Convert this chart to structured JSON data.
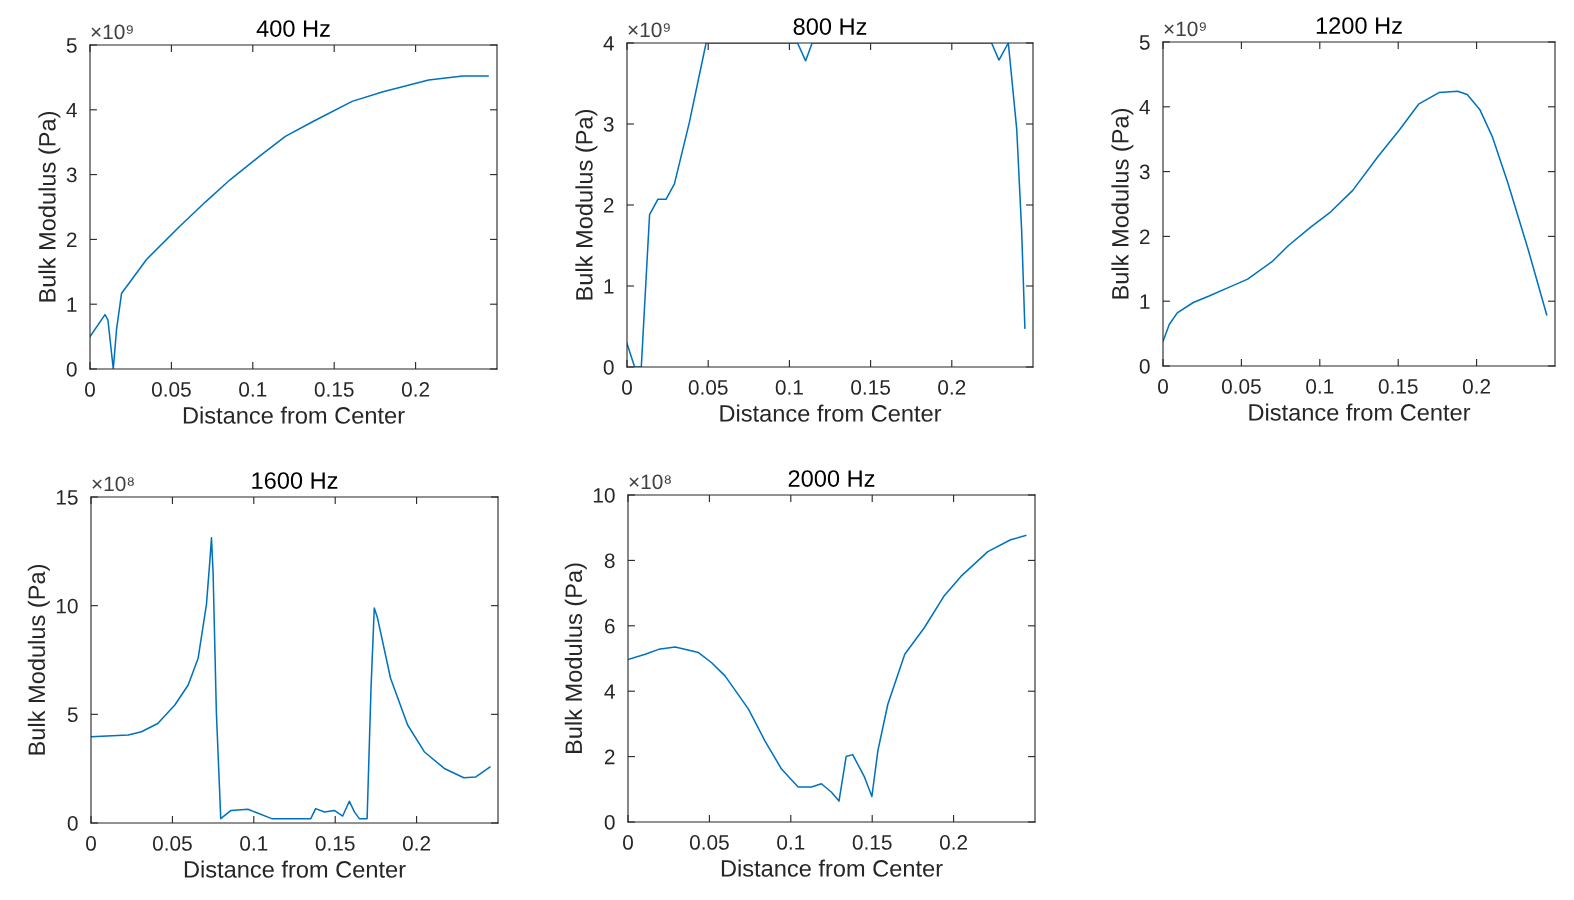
{
  "chart_data": [
    {
      "type": "line",
      "title": "400 Hz",
      "xlabel": "Distance from Center",
      "ylabel": "Bulk Modulus (Pa)",
      "annotations": [
        "×10⁹"
      ],
      "xlim": [
        0,
        0.25
      ],
      "xticks": [
        0,
        0.05,
        0.1,
        0.15,
        0.2
      ],
      "ylim": [
        0,
        5
      ],
      "yticks": [
        0,
        1,
        2,
        3,
        4,
        5
      ],
      "grid": false,
      "series": [
        {
          "color": "#0072bd",
          "x": [
            0,
            0.0092,
            0.011,
            0.0143,
            0.0163,
            0.0194,
            0.0224,
            0.0347,
            0.055,
            0.071,
            0.086,
            0.104,
            0.12,
            0.137,
            0.161,
            0.18,
            0.208,
            0.229,
            0.2445
          ],
          "values": [
            0.5,
            0.84,
            0.76,
            0,
            0.61,
            1.17,
            1.27,
            1.69,
            2.2,
            2.58,
            2.92,
            3.28,
            3.59,
            3.82,
            4.13,
            4.28,
            4.46,
            4.52,
            4.52
          ]
        }
      ]
    },
    {
      "type": "line",
      "title": "800 Hz",
      "xlabel": "Distance from Center",
      "ylabel": "Bulk Modulus (Pa)",
      "annotations": [
        "×10⁹"
      ],
      "xlim": [
        0,
        0.25
      ],
      "xticks": [
        0,
        0.05,
        0.1,
        0.15,
        0.2
      ],
      "ylim": [
        0,
        4
      ],
      "yticks": [
        0,
        1,
        2,
        3,
        4
      ],
      "grid": false,
      "series": [
        {
          "color": "#0072bd",
          "x": [
            0,
            0.0047,
            0.0088,
            0.0108,
            0.0139,
            0.019,
            0.024,
            0.0292,
            0.0384,
            0.0487,
            0.105,
            0.11,
            0.114,
            0.2245,
            0.229,
            0.2348,
            0.24,
            0.243,
            0.245
          ],
          "values": [
            0.29,
            0,
            0,
            0.74,
            1.88,
            2.07,
            2.07,
            2.26,
            3.02,
            4,
            4,
            3.78,
            4,
            4,
            3.79,
            4,
            2.93,
            1.69,
            0.48
          ]
        }
      ]
    },
    {
      "type": "line",
      "title": "1200 Hz",
      "xlabel": "Distance from Center",
      "ylabel": "Bulk Modulus (Pa)",
      "annotations": [
        "×10⁹"
      ],
      "xlim": [
        0,
        0.25
      ],
      "xticks": [
        0,
        0.05,
        0.1,
        0.15,
        0.2
      ],
      "ylim": [
        0,
        5
      ],
      "yticks": [
        0,
        1,
        2,
        3,
        4,
        5
      ],
      "grid": false,
      "series": [
        {
          "color": "#0072bd",
          "x": [
            0,
            0.004,
            0.0091,
            0.0193,
            0.0294,
            0.0416,
            0.054,
            0.07,
            0.08,
            0.094,
            0.107,
            0.121,
            0.137,
            0.151,
            0.163,
            0.176,
            0.188,
            0.194,
            0.202,
            0.21,
            0.22,
            0.2325,
            0.2447
          ],
          "values": [
            0.38,
            0.64,
            0.82,
            0.98,
            1.08,
            1.21,
            1.34,
            1.62,
            1.86,
            2.14,
            2.38,
            2.71,
            3.23,
            3.65,
            4.04,
            4.22,
            4.24,
            4.19,
            3.96,
            3.54,
            2.82,
            1.83,
            0.79
          ]
        }
      ]
    },
    {
      "type": "line",
      "title": "1600 Hz",
      "xlabel": "Distance from Center",
      "ylabel": "Bulk Modulus (Pa)",
      "annotations": [
        "×10⁸"
      ],
      "xlim": [
        0,
        0.25
      ],
      "xticks": [
        0,
        0.05,
        0.1,
        0.15,
        0.2
      ],
      "ylim": [
        0,
        15
      ],
      "yticks": [
        0,
        5,
        10,
        15
      ],
      "grid": false,
      "series": [
        {
          "color": "#0072bd",
          "x": [
            0,
            0.0229,
            0.031,
            0.041,
            0.0515,
            0.0597,
            0.0658,
            0.0709,
            0.073,
            0.074,
            0.075,
            0.077,
            0.0797,
            0.086,
            0.0964,
            0.111,
            0.135,
            0.138,
            0.1434,
            0.1495,
            0.1546,
            0.1587,
            0.1618,
            0.1648,
            0.1696,
            0.172,
            0.174,
            0.176,
            0.184,
            0.1945,
            0.2047,
            0.217,
            0.229,
            0.2364,
            0.245
          ],
          "values": [
            3.97,
            4.05,
            4.2,
            4.58,
            5.43,
            6.35,
            7.58,
            10.05,
            12.05,
            13.12,
            11.5,
            5.12,
            0.2,
            0.58,
            0.63,
            0.2,
            0.2,
            0.66,
            0.51,
            0.58,
            0.32,
            1.0,
            0.51,
            0.2,
            0.2,
            6.2,
            9.89,
            9.43,
            6.66,
            4.51,
            3.28,
            2.51,
            2.08,
            2.12,
            2.57
          ]
        }
      ]
    },
    {
      "type": "line",
      "title": "2000 Hz",
      "xlabel": "Distance from Center",
      "ylabel": "Bulk Modulus (Pa)",
      "annotations": [
        "×10⁸"
      ],
      "xlim": [
        0,
        0.25
      ],
      "xticks": [
        0,
        0.05,
        0.1,
        0.15,
        0.2
      ],
      "ylim": [
        0,
        10
      ],
      "yticks": [
        0,
        2,
        4,
        6,
        8,
        10
      ],
      "grid": false,
      "series": [
        {
          "color": "#0072bd",
          "x": [
            0,
            0.0106,
            0.0188,
            0.029,
            0.0433,
            0.0514,
            0.0596,
            0.074,
            0.084,
            0.0943,
            0.1045,
            0.1127,
            0.1188,
            0.125,
            0.1296,
            0.134,
            0.138,
            0.1453,
            0.1498,
            0.1535,
            0.1596,
            0.17,
            0.182,
            0.194,
            0.2045,
            0.221,
            0.235,
            0.2443
          ],
          "values": [
            4.97,
            5.13,
            5.28,
            5.35,
            5.18,
            4.87,
            4.47,
            3.45,
            2.49,
            1.62,
            1.07,
            1.07,
            1.17,
            0.91,
            0.64,
            2.0,
            2.06,
            1.37,
            0.78,
            2.18,
            3.6,
            5.13,
            5.94,
            6.9,
            7.51,
            8.27,
            8.63,
            8.76
          ]
        }
      ]
    }
  ]
}
